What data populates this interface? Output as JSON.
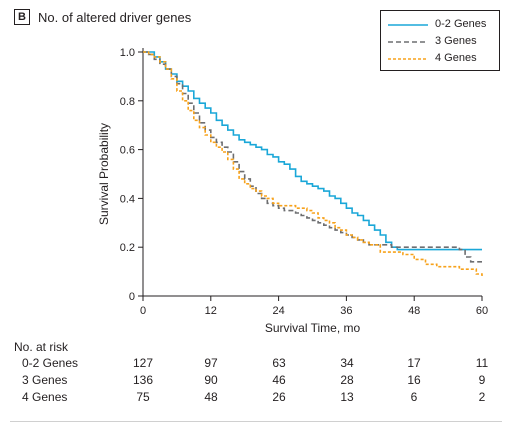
{
  "panel": {
    "letter": "B",
    "title": "No. of altered driver genes"
  },
  "colors": {
    "series_0_2": "#1aa7d8",
    "series_3": "#6d6e70",
    "series_4": "#f7a21b",
    "axis": "#231f20"
  },
  "chart_data": {
    "type": "line",
    "ylabel": "Survival Probability",
    "xlabel": "Survival Time, mo",
    "xlim": [
      0,
      60
    ],
    "ylim": [
      0,
      1.0
    ],
    "x_ticks": [
      "0",
      "12",
      "24",
      "36",
      "48",
      "60"
    ],
    "y_ticks": [
      "0",
      "0.2",
      "0.4",
      "0.6",
      "0.8",
      "1.0"
    ],
    "legend_position": "top-right",
    "series": [
      {
        "name": "0-2 Genes",
        "style": "solid",
        "color": "#1aa7d8",
        "x": [
          0,
          1,
          2,
          3,
          4,
          5,
          6,
          7,
          8,
          9,
          10,
          11,
          12,
          13,
          14,
          15,
          16,
          17,
          18,
          19,
          20,
          21,
          22,
          23,
          24,
          25,
          26,
          27,
          28,
          29,
          30,
          31,
          32,
          33,
          34,
          35,
          36,
          37,
          38,
          39,
          40,
          41,
          42,
          43,
          44,
          45,
          46,
          47,
          48,
          50,
          52,
          54,
          56,
          58,
          60
        ],
        "y": [
          1.0,
          1.0,
          0.98,
          0.96,
          0.93,
          0.91,
          0.88,
          0.86,
          0.84,
          0.81,
          0.79,
          0.77,
          0.75,
          0.72,
          0.7,
          0.68,
          0.66,
          0.64,
          0.63,
          0.62,
          0.61,
          0.6,
          0.58,
          0.57,
          0.55,
          0.54,
          0.52,
          0.49,
          0.47,
          0.46,
          0.45,
          0.44,
          0.43,
          0.41,
          0.4,
          0.38,
          0.36,
          0.34,
          0.33,
          0.31,
          0.29,
          0.27,
          0.25,
          0.22,
          0.2,
          0.19,
          0.19,
          0.19,
          0.19,
          0.19,
          0.19,
          0.19,
          0.19,
          0.19,
          0.19
        ]
      },
      {
        "name": "3 Genes",
        "style": "dashed",
        "color": "#6d6e70",
        "x": [
          0,
          1,
          2,
          3,
          4,
          5,
          6,
          7,
          8,
          9,
          10,
          11,
          12,
          13,
          14,
          15,
          16,
          17,
          18,
          19,
          20,
          21,
          22,
          23,
          24,
          25,
          26,
          27,
          28,
          29,
          30,
          31,
          32,
          33,
          34,
          35,
          36,
          37,
          38,
          39,
          40,
          42,
          44,
          46,
          48,
          50,
          52,
          54,
          56,
          57,
          58,
          60
        ],
        "y": [
          1.0,
          0.99,
          0.97,
          0.95,
          0.93,
          0.9,
          0.87,
          0.83,
          0.79,
          0.75,
          0.71,
          0.68,
          0.65,
          0.63,
          0.61,
          0.59,
          0.55,
          0.51,
          0.48,
          0.45,
          0.42,
          0.4,
          0.38,
          0.37,
          0.36,
          0.35,
          0.35,
          0.34,
          0.33,
          0.32,
          0.31,
          0.3,
          0.29,
          0.28,
          0.27,
          0.26,
          0.25,
          0.24,
          0.23,
          0.22,
          0.21,
          0.21,
          0.2,
          0.2,
          0.2,
          0.2,
          0.2,
          0.2,
          0.19,
          0.16,
          0.14,
          0.14
        ]
      },
      {
        "name": "4 Genes",
        "style": "dashed",
        "color": "#f7a21b",
        "x": [
          0,
          1,
          2,
          3,
          4,
          5,
          6,
          7,
          8,
          9,
          10,
          11,
          12,
          13,
          14,
          15,
          16,
          17,
          18,
          19,
          20,
          21,
          22,
          23,
          24,
          25,
          26,
          27,
          28,
          29,
          30,
          31,
          32,
          33,
          34,
          35,
          36,
          37,
          38,
          39,
          40,
          42,
          44,
          46,
          48,
          50,
          52,
          54,
          56,
          58,
          59,
          60
        ],
        "y": [
          1.0,
          0.99,
          0.98,
          0.96,
          0.93,
          0.89,
          0.84,
          0.8,
          0.76,
          0.72,
          0.69,
          0.66,
          0.63,
          0.61,
          0.59,
          0.56,
          0.52,
          0.48,
          0.46,
          0.44,
          0.43,
          0.41,
          0.4,
          0.38,
          0.37,
          0.37,
          0.37,
          0.36,
          0.36,
          0.35,
          0.34,
          0.32,
          0.31,
          0.3,
          0.28,
          0.27,
          0.25,
          0.24,
          0.23,
          0.22,
          0.21,
          0.18,
          0.18,
          0.17,
          0.15,
          0.13,
          0.12,
          0.12,
          0.11,
          0.11,
          0.09,
          0.08
        ]
      }
    ]
  },
  "risk_table": {
    "title": "No. at risk",
    "rows": [
      {
        "label": "0-2 Genes",
        "values": [
          "127",
          "97",
          "63",
          "34",
          "17",
          "11"
        ]
      },
      {
        "label": "3 Genes",
        "values": [
          "136",
          "90",
          "46",
          "28",
          "16",
          "9"
        ]
      },
      {
        "label": "4 Genes",
        "values": [
          "75",
          "48",
          "26",
          "13",
          "6",
          "2"
        ]
      }
    ]
  }
}
